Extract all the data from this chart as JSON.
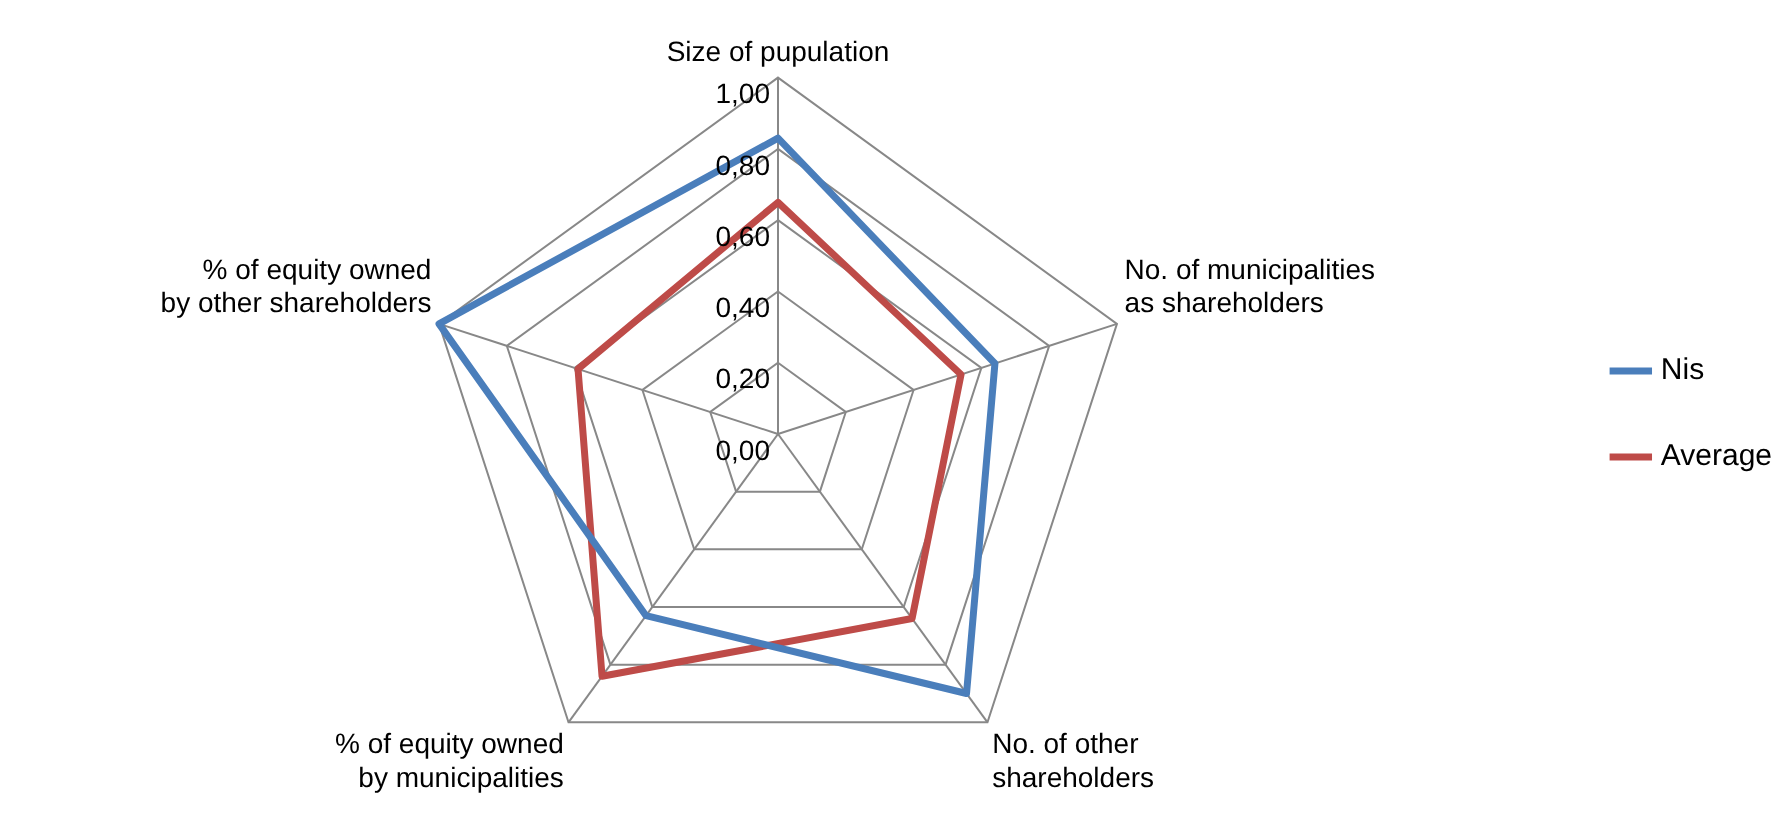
{
  "chart_data": {
    "type": "radar",
    "categories": [
      "Size of pupulation",
      "No. of municipalities\nas shareholders",
      "No. of other\nshareholders",
      "% of equity owned\nby municipalities",
      "% of equity owned\nby other shareholders"
    ],
    "series": [
      {
        "name": "Nis",
        "color": "#4a7ebb",
        "values": [
          0.83,
          0.64,
          0.9,
          0.63,
          1.0
        ]
      },
      {
        "name": "Average",
        "color": "#be4b48",
        "values": [
          0.65,
          0.54,
          0.64,
          0.84,
          0.59
        ]
      }
    ],
    "ylim": [
      0,
      1
    ],
    "yticks": [
      {
        "value": 0,
        "label": "0,00"
      },
      {
        "value": 0.2,
        "label": "0,20"
      },
      {
        "value": 0.4,
        "label": "0,40"
      },
      {
        "value": 0.6,
        "label": "0,60"
      },
      {
        "value": 0.8,
        "label": "0,80"
      },
      {
        "value": 1,
        "label": "1,00"
      }
    ],
    "grid": true,
    "legend": "right",
    "marker": "none",
    "line_style": "solid"
  }
}
